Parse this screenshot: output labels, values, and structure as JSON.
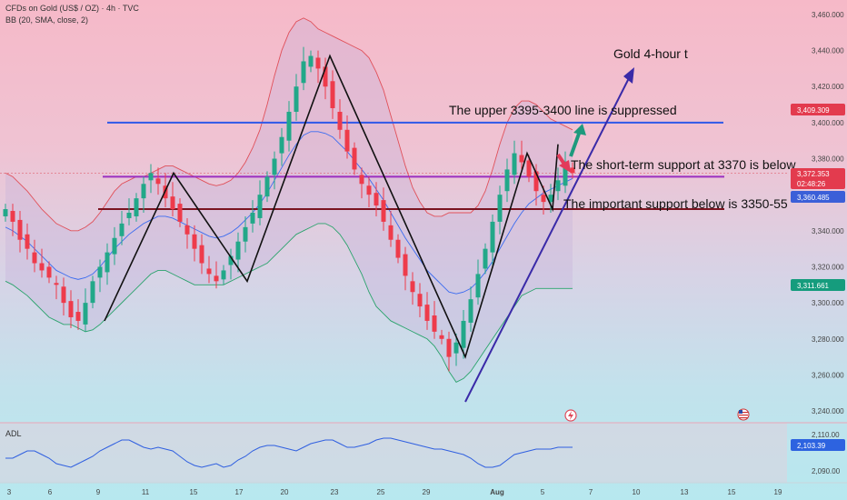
{
  "header": {
    "symbol_line": "CFDs on Gold (US$ / OZ) · 4h · TVC",
    "indicator_line": "BB (20, SMA, close, 2)"
  },
  "adl_label": "ADL",
  "annotations": {
    "title": "Gold 4-hour t",
    "upper": "The upper 3395-3400 line is suppressed",
    "short_term": "The short-term support at 3370 is below",
    "important": "The important support below is 3350-55"
  },
  "price_labels": {
    "red": "3,409.309",
    "last": "3,372.353",
    "countdown": "02:48:26",
    "blue": "3,360.485",
    "green": "3,311.661",
    "adl_value": "2,103.39"
  },
  "colors": {
    "up": "#22a889",
    "down": "#ee3b4b",
    "bb_upper": "#e0505a",
    "bb_basis": "#3b6cf0",
    "bb_lower": "#2aa36c",
    "blue_line": "#2f58e8",
    "purple_line": "#9b2fc0",
    "maroon_line": "#7a1420",
    "trend": "#3a2aa8"
  },
  "chart_data": [
    {
      "type": "candlestick",
      "title": "CFDs on Gold (US$ / OZ) · 4h · TVC",
      "indicator": "BB (20, SMA, close, 2)",
      "ylim": [
        3235,
        3465
      ],
      "y_ticks": [
        3240,
        3260,
        3280,
        3300,
        3320,
        3340,
        3360,
        3380,
        3400,
        3420,
        3440,
        3460
      ],
      "x_ticks": [
        "3",
        "6",
        "9",
        "11",
        "15",
        "17",
        "20",
        "23",
        "25",
        "29",
        "Aug",
        "5",
        "7",
        "10",
        "13",
        "15",
        "19"
      ],
      "horizontal_levels": [
        {
          "value": 3400,
          "color": "blue"
        },
        {
          "value": 3370,
          "color": "purple"
        },
        {
          "value": 3352,
          "color": "maroon"
        }
      ],
      "zigzag": [
        3290,
        3372,
        3312,
        3437,
        3270,
        3383,
        3352,
        3388
      ],
      "close_path": [
        3352,
        3345,
        3335,
        3330,
        3322,
        3318,
        3314,
        3310,
        3300,
        3292,
        3290,
        3300,
        3312,
        3320,
        3328,
        3336,
        3344,
        3350,
        3358,
        3366,
        3372,
        3366,
        3358,
        3352,
        3345,
        3338,
        3330,
        3322,
        3316,
        3312,
        3318,
        3326,
        3334,
        3342,
        3350,
        3360,
        3370,
        3380,
        3392,
        3406,
        3420,
        3434,
        3437,
        3430,
        3420,
        3408,
        3396,
        3384,
        3374,
        3366,
        3360,
        3354,
        3345,
        3335,
        3325,
        3315,
        3306,
        3298,
        3290,
        3284,
        3280,
        3270,
        3278,
        3290,
        3302,
        3316,
        3330,
        3345,
        3360,
        3374,
        3383,
        3378,
        3370,
        3362,
        3356,
        3360,
        3368,
        3376,
        3372
      ],
      "series": [
        {
          "name": "BB upper",
          "values": [
            3372,
            3370,
            3366,
            3362,
            3357,
            3352,
            3348,
            3344,
            3342,
            3340,
            3340,
            3342,
            3345,
            3350,
            3356,
            3362,
            3366,
            3368,
            3370,
            3370,
            3372,
            3374,
            3376,
            3376,
            3374,
            3372,
            3370,
            3368,
            3366,
            3365,
            3366,
            3368,
            3372,
            3378,
            3386,
            3396,
            3410,
            3426,
            3440,
            3450,
            3456,
            3458,
            3456,
            3452,
            3450,
            3448,
            3446,
            3444,
            3442,
            3440,
            3436,
            3428,
            3418,
            3404,
            3390,
            3376,
            3364,
            3356,
            3350,
            3348,
            3348,
            3350,
            3350,
            3350,
            3350,
            3354,
            3362,
            3374,
            3388,
            3400,
            3408,
            3412,
            3412,
            3410,
            3406,
            3402,
            3400,
            3398,
            3396
          ]
        },
        {
          "name": "BB basis",
          "values": [
            3342,
            3340,
            3337,
            3334,
            3330,
            3326,
            3322,
            3318,
            3316,
            3314,
            3313,
            3314,
            3316,
            3320,
            3325,
            3330,
            3334,
            3338,
            3341,
            3344,
            3346,
            3348,
            3348,
            3347,
            3345,
            3343,
            3341,
            3339,
            3337,
            3336,
            3337,
            3339,
            3342,
            3346,
            3350,
            3355,
            3361,
            3368,
            3375,
            3382,
            3388,
            3393,
            3395,
            3395,
            3394,
            3392,
            3388,
            3384,
            3379,
            3374,
            3369,
            3363,
            3357,
            3350,
            3343,
            3336,
            3330,
            3324,
            3318,
            3314,
            3310,
            3306,
            3305,
            3306,
            3308,
            3312,
            3317,
            3323,
            3330,
            3337,
            3344,
            3350,
            3355,
            3358,
            3361,
            3363,
            3365,
            3367,
            3369
          ]
        },
        {
          "name": "BB lower",
          "values": [
            3312,
            3310,
            3307,
            3304,
            3300,
            3296,
            3292,
            3290,
            3288,
            3288,
            3286,
            3284,
            3285,
            3288,
            3292,
            3296,
            3300,
            3304,
            3308,
            3312,
            3316,
            3318,
            3318,
            3316,
            3314,
            3312,
            3310,
            3310,
            3310,
            3310,
            3310,
            3312,
            3314,
            3316,
            3318,
            3320,
            3322,
            3326,
            3330,
            3334,
            3338,
            3340,
            3342,
            3344,
            3344,
            3342,
            3338,
            3332,
            3324,
            3316,
            3306,
            3298,
            3294,
            3290,
            3288,
            3286,
            3284,
            3282,
            3280,
            3276,
            3270,
            3262,
            3256,
            3258,
            3262,
            3268,
            3274,
            3280,
            3286,
            3292,
            3298,
            3304,
            3306,
            3308,
            3308,
            3308,
            3308,
            3308,
            3308
          ]
        }
      ]
    },
    {
      "type": "line",
      "title": "ADL",
      "ylim": [
        2085,
        2115
      ],
      "y_ticks": [
        2090,
        2110
      ],
      "series": [
        {
          "name": "ADL",
          "values": [
            2097,
            2097,
            2099,
            2101,
            2101,
            2099,
            2097,
            2094,
            2093,
            2092,
            2094,
            2096,
            2098,
            2101,
            2103,
            2105,
            2107,
            2107,
            2105,
            2103,
            2102,
            2103,
            2102,
            2101,
            2098,
            2095,
            2093,
            2092,
            2093,
            2094,
            2092,
            2093,
            2096,
            2098,
            2101,
            2103,
            2104,
            2104,
            2103,
            2102,
            2101,
            2103,
            2105,
            2106,
            2107,
            2107,
            2105,
            2103,
            2103,
            2104,
            2105,
            2107,
            2108,
            2108,
            2107,
            2106,
            2105,
            2104,
            2103,
            2102,
            2102,
            2101,
            2100,
            2099,
            2097,
            2094,
            2092,
            2092,
            2093,
            2096,
            2099,
            2100,
            2101,
            2102,
            2102,
            2102,
            2103,
            2103,
            2103
          ]
        }
      ]
    }
  ]
}
